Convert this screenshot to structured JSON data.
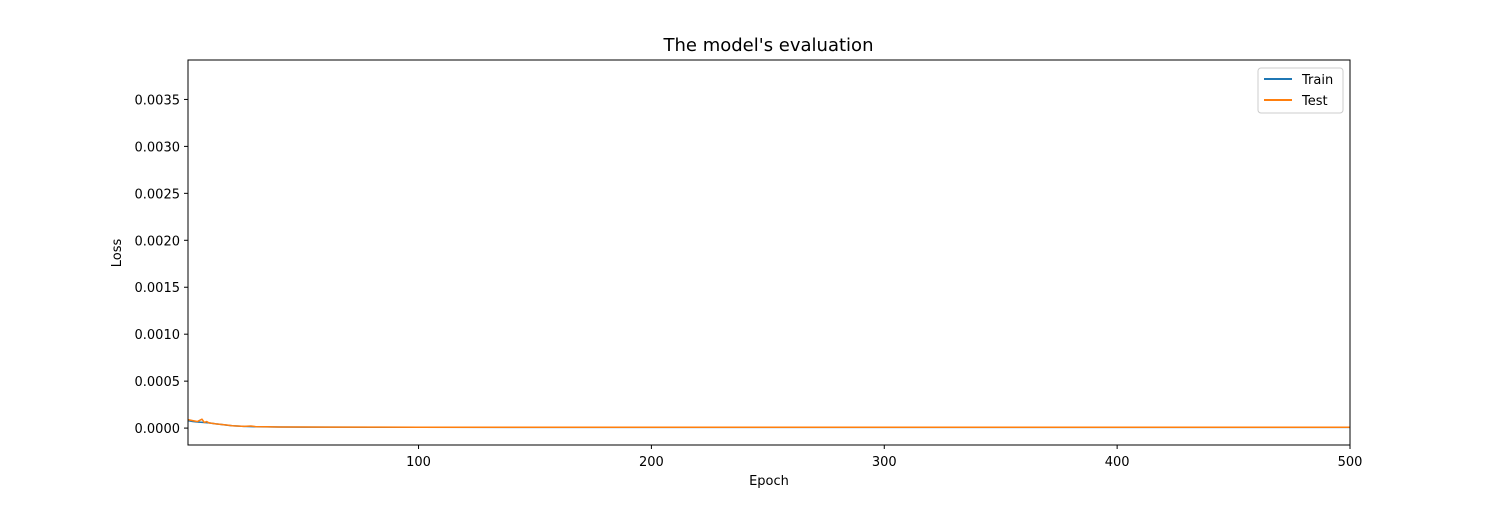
{
  "chart_data": {
    "type": "line",
    "title": "The model's evaluation",
    "xlabel": "Epoch",
    "ylabel": "Loss",
    "xlim": [
      1,
      500
    ],
    "ylim": [
      -0.00018,
      0.00392
    ],
    "xticks": [
      100,
      200,
      300,
      400,
      500
    ],
    "yticks": [
      0.0,
      0.0005,
      0.001,
      0.0015,
      0.002,
      0.0025,
      0.003,
      0.0035
    ],
    "ytick_labels": [
      "0.0000",
      "0.0005",
      "0.0010",
      "0.0015",
      "0.0020",
      "0.0025",
      "0.0030",
      "0.0035"
    ],
    "grid": false,
    "legend_position": "top-right",
    "series": [
      {
        "name": "Train",
        "color": "#1f77b4",
        "x": [
          1,
          3,
          5,
          8,
          10,
          13,
          15,
          18,
          20,
          25,
          30,
          40,
          50,
          60,
          80,
          100,
          150,
          200,
          250,
          300,
          350,
          400,
          450,
          500
        ],
        "y": [
          8e-05,
          7e-05,
          6.5e-05,
          6e-05,
          5.5e-05,
          4.5e-05,
          4e-05,
          3e-05,
          2.5e-05,
          1.8e-05,
          1.4e-05,
          1.2e-05,
          1e-05,
          1e-05,
          9e-06,
          9e-06,
          8e-06,
          8e-06,
          8e-06,
          8e-06,
          8e-06,
          8e-06,
          8e-06,
          8e-06
        ]
      },
      {
        "name": "Test",
        "color": "#ff7f0e",
        "x": [
          1,
          3,
          5,
          7,
          8,
          9,
          10,
          13,
          15,
          18,
          20,
          25,
          28,
          30,
          35,
          40,
          50,
          60,
          80,
          100,
          150,
          200,
          250,
          300,
          350,
          400,
          450,
          500
        ],
        "y": [
          9e-05,
          8e-05,
          7e-05,
          9.5e-05,
          6e-05,
          7e-05,
          5.5e-05,
          4.5e-05,
          4e-05,
          3.2e-05,
          2.5e-05,
          1.8e-05,
          2.2e-05,
          1.6e-05,
          1.4e-05,
          1.2e-05,
          1.1e-05,
          1e-05,
          1e-05,
          9e-06,
          9e-06,
          9e-06,
          9e-06,
          9e-06,
          9e-06,
          9e-06,
          9e-06,
          9e-06
        ]
      }
    ]
  }
}
